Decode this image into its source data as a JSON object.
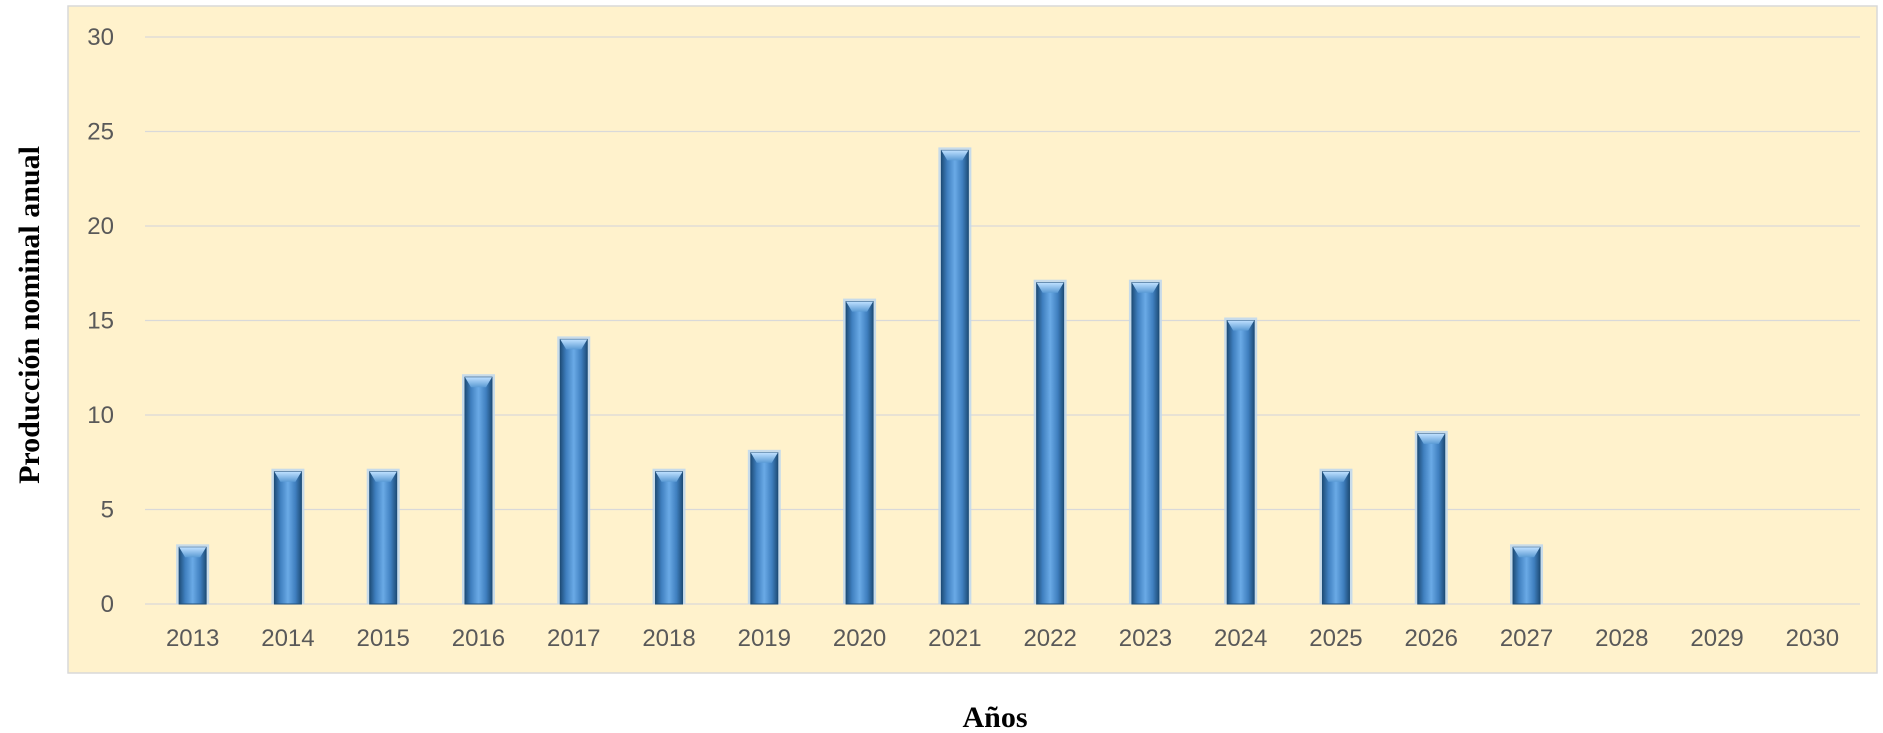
{
  "colors": {
    "plot_background": "#fff2cc",
    "plot_border": "#d9d9d9",
    "gridline": "#d9d9d9",
    "bar_fill": "#5b9bd5",
    "bar_dark": "#1f4e79",
    "bar_glow": "#bdd7ee",
    "tick_text": "#595959",
    "axis_title_text": "#000000"
  },
  "chart_data": {
    "type": "bar",
    "title": "",
    "xlabel": "Años",
    "ylabel": "Producción nominal anual",
    "categories": [
      "2013",
      "2014",
      "2015",
      "2016",
      "2017",
      "2018",
      "2019",
      "2020",
      "2021",
      "2022",
      "2023",
      "2024",
      "2025",
      "2026",
      "2027",
      "2028",
      "2029",
      "2030"
    ],
    "values": [
      3,
      7,
      7,
      12,
      14,
      7,
      8,
      16,
      24,
      17,
      17,
      15,
      7,
      9,
      3,
      0,
      0,
      0
    ],
    "ylim": [
      0,
      30
    ],
    "yticks": [
      0,
      5,
      10,
      15,
      20,
      25,
      30
    ],
    "grid": true,
    "legend": "none"
  }
}
